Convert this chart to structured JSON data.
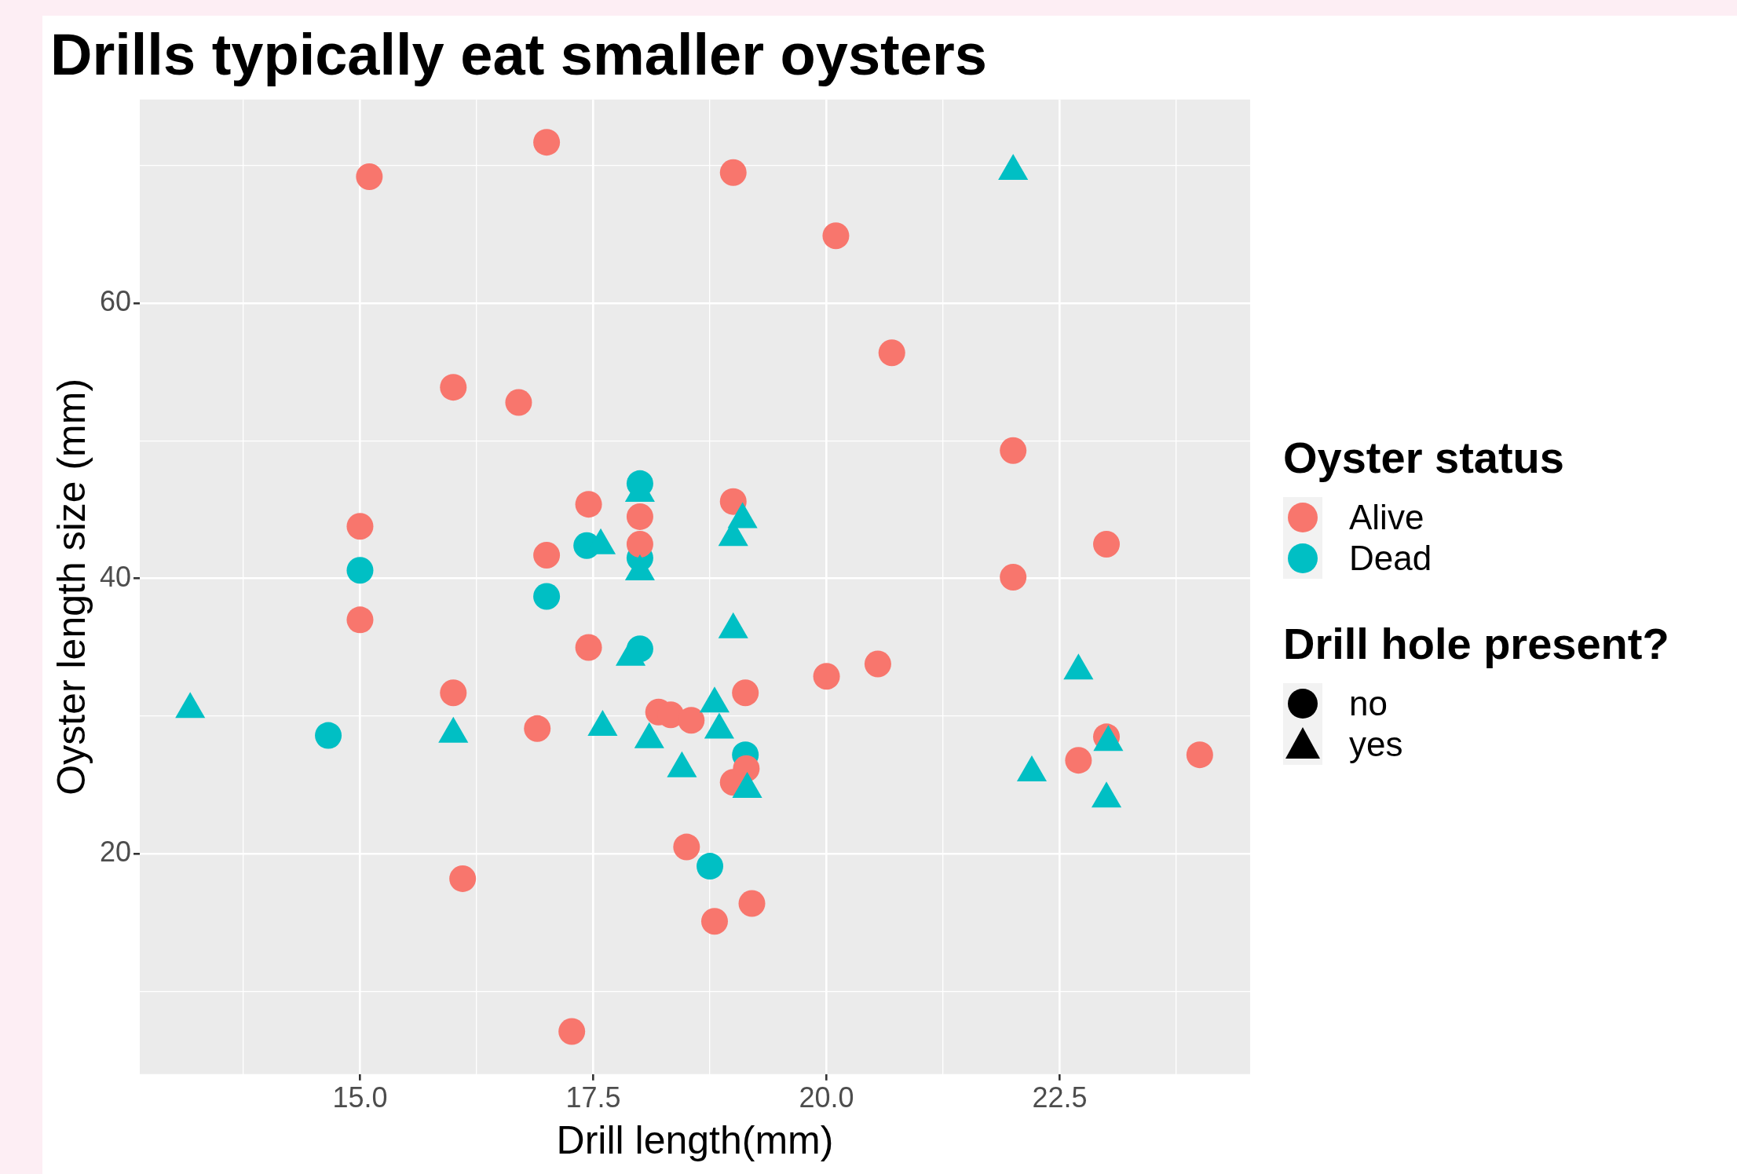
{
  "chart_data": {
    "type": "scatter",
    "title": "Drills typically eat smaller oysters",
    "xlabel": "Drill length(mm)",
    "ylabel": "Oyster length size (mm)",
    "legend_title": "Oyster status",
    "legend": "right",
    "grid": true,
    "xlim": [
      12.64,
      24.54
    ],
    "ylim": [
      4.0,
      74.8
    ],
    "xticks": [
      {
        "value": 13.75,
        "label": null
      },
      {
        "value": 15,
        "label": "15.0"
      },
      {
        "value": 16.25,
        "label": null
      },
      17.5,
      {
        "value": 18.75,
        "label": null
      },
      {
        "value": 20,
        "label": "20.0"
      },
      {
        "value": 21.25,
        "label": null
      },
      22.5,
      {
        "value": 23.75,
        "label": null
      }
    ],
    "yticks": [
      {
        "value": 10,
        "label": null
      },
      20,
      {
        "value": 30,
        "label": null
      },
      40,
      {
        "value": 50,
        "label": null
      },
      60,
      {
        "value": 70,
        "label": null
      }
    ],
    "series": [
      {
        "name": "Alive",
        "color": "#f8766d",
        "marker": "circle",
        "x": [
          15.1,
          17.0,
          19.0,
          20.1,
          20.7,
          16.0,
          16.7,
          22.0,
          15.0,
          23.0,
          22.0,
          17.45,
          19.0,
          18.0,
          18.0,
          17.0,
          15.0,
          17.45,
          16.0,
          20.0,
          20.55,
          19.13,
          18.2,
          18.33,
          18.55,
          16.9,
          23.0,
          22.7,
          24.0,
          19.14,
          19.0,
          18.5,
          16.1,
          18.8,
          19.2,
          17.27
        ],
        "values": [
          69.2,
          71.7,
          69.5,
          64.9,
          56.4,
          53.9,
          52.8,
          49.3,
          43.8,
          42.5,
          40.1,
          45.4,
          45.6,
          44.5,
          42.5,
          41.7,
          37.0,
          35.0,
          31.7,
          32.9,
          33.8,
          31.7,
          30.3,
          30.1,
          29.7,
          29.1,
          28.5,
          26.8,
          27.2,
          26.2,
          25.2,
          20.5,
          18.2,
          15.1,
          16.4,
          7.1
        ]
      },
      {
        "name": "Dead",
        "color": "#00bfc4",
        "marker": "circle",
        "x": [
          18.0,
          17.43,
          18.0,
          15.0,
          17.0,
          18.0,
          14.66,
          19.13,
          18.75
        ],
        "values": [
          46.9,
          42.4,
          41.5,
          40.6,
          38.7,
          34.9,
          28.6,
          27.2,
          19.1
        ]
      },
      {
        "color": "#00bfc4",
        "marker": "triangle",
        "x": [
          22.0,
          18.0,
          17.58,
          19.0,
          19.1,
          18.0,
          19.0,
          17.9,
          13.18,
          16.0,
          17.6,
          18.1,
          18.8,
          18.85,
          18.45,
          19.15,
          22.7,
          22.2,
          23.02,
          23.0
        ],
        "values": [
          69.6,
          46.2,
          42.4,
          43.0,
          44.3,
          40.5,
          36.3,
          34.3,
          30.5,
          28.7,
          29.2,
          28.3,
          30.9,
          29.0,
          26.2,
          24.7,
          33.3,
          25.9,
          28.1,
          24.0
        ]
      }
    ],
    "annotations": [
      "Drill hole present?",
      "no",
      "yes"
    ]
  }
}
